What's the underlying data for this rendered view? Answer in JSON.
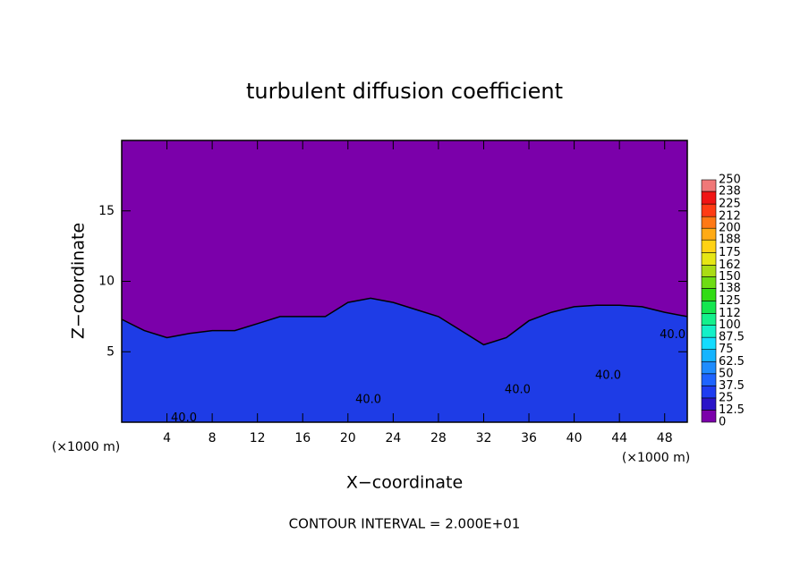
{
  "chart_data": {
    "type": "contour",
    "title": "turbulent diffusion coefficient",
    "xlabel": "X−coordinate",
    "ylabel": "Z−coordinate",
    "x_units": "(×1000 m)",
    "footer": "CONTOUR INTERVAL = 2.000E+01",
    "xlim": [
      0,
      50
    ],
    "ylim": [
      0,
      20
    ],
    "xticks": [
      4,
      8,
      12,
      16,
      20,
      24,
      28,
      32,
      36,
      40,
      44,
      48
    ],
    "yticks": [
      5,
      10,
      15
    ],
    "background_color": "#7b00aa",
    "layer_color": "#1e3ce6",
    "layer_top": {
      "x": [
        0,
        2,
        4,
        6,
        8,
        10,
        12,
        14,
        16,
        18,
        20,
        22,
        24,
        26,
        28,
        30,
        32,
        34,
        36,
        38,
        40,
        42,
        44,
        46,
        48,
        50
      ],
      "z": [
        7.3,
        6.5,
        6,
        6.3,
        6.5,
        6.5,
        7,
        7.5,
        7.5,
        7.5,
        8.5,
        8.8,
        8.5,
        8,
        7.5,
        6.5,
        5.5,
        6,
        7.2,
        7.8,
        8.2,
        8.3,
        8.3,
        8.2,
        7.8,
        7.5
      ]
    },
    "contour_labels": [
      {
        "x": 5.5,
        "z": 0.3,
        "label": "40.0"
      },
      {
        "x": 21.8,
        "z": 1.6,
        "label": "40.0"
      },
      {
        "x": 35,
        "z": 2.3,
        "label": "40.0"
      },
      {
        "x": 43,
        "z": 3.3,
        "label": "40.0"
      },
      {
        "x": 48.7,
        "z": 6.2,
        "label": "40.0"
      }
    ],
    "colorbar": {
      "ticks": [
        0,
        12.5,
        25,
        37.5,
        50,
        62.5,
        75,
        87.5,
        100,
        112,
        125,
        138,
        150,
        162,
        175,
        188,
        200,
        212,
        225,
        238,
        250
      ],
      "colors": [
        "#7b00aa",
        "#2a14c8",
        "#1e3cf0",
        "#1e64ff",
        "#1e8cff",
        "#14b4ff",
        "#14dcff",
        "#14f0c8",
        "#14f08c",
        "#14e650",
        "#32dc14",
        "#6edc14",
        "#aadc14",
        "#e6e614",
        "#ffd214",
        "#ffaa14",
        "#ff7814",
        "#ff3c14",
        "#f01414",
        "#f07878"
      ]
    }
  }
}
